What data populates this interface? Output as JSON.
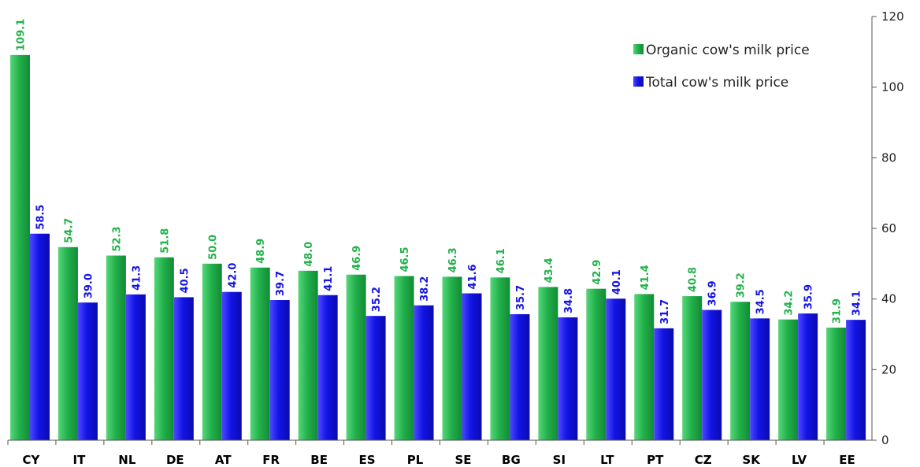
{
  "chart_data": {
    "type": "bar",
    "categories": [
      "CY",
      "IT",
      "NL",
      "DE",
      "AT",
      "FR",
      "BE",
      "ES",
      "PL",
      "SE",
      "BG",
      "SI",
      "LT",
      "PT",
      "CZ",
      "SK",
      "LV",
      "EE"
    ],
    "series": [
      {
        "name": "Organic cow's milk price",
        "color": "#22b24c",
        "values": [
          109.1,
          54.7,
          52.3,
          51.8,
          50.0,
          48.9,
          48.0,
          46.9,
          46.5,
          46.3,
          46.1,
          43.4,
          42.9,
          41.4,
          40.8,
          39.2,
          34.2,
          31.9
        ],
        "labels": [
          "109.1",
          "54.7",
          "52.3",
          "51.8",
          "50.0",
          "48.9",
          "48.0",
          "46.9",
          "46.5",
          "46.3",
          "46.1",
          "43.4",
          "42.9",
          "41.4",
          "40.8",
          "39.2",
          "34.2",
          "31.9"
        ]
      },
      {
        "name": "Total cow's milk price",
        "color": "#1414e6",
        "values": [
          58.5,
          39.0,
          41.3,
          40.5,
          42.0,
          39.7,
          41.1,
          35.2,
          38.2,
          41.6,
          35.7,
          34.8,
          40.1,
          31.7,
          36.9,
          34.5,
          35.9,
          34.1
        ],
        "labels": [
          "58.5",
          "39.0",
          "41.3",
          "40.5",
          "42.0",
          "39.7",
          "41.1",
          "35.2",
          "38.2",
          "41.6",
          "35.7",
          "34.8",
          "40.1",
          "31.7",
          "36.9",
          "34.5",
          "35.9",
          "34.1"
        ]
      }
    ],
    "y_axis": {
      "position": "right",
      "ylim": [
        0,
        120
      ],
      "ticks": [
        0,
        20,
        40,
        60,
        80,
        100,
        120
      ]
    },
    "grid": false,
    "legend": {
      "placement": "top-right"
    },
    "title": "",
    "xlabel": "",
    "ylabel": ""
  }
}
